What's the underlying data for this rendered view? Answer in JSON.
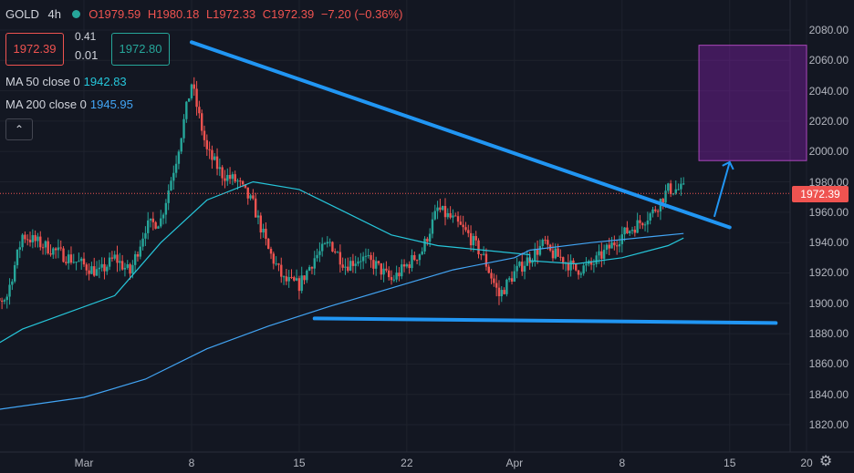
{
  "header": {
    "symbol": "GOLD",
    "timeframe": "4h",
    "open": "O1979.59",
    "high": "H1980.18",
    "low": "L1972.33",
    "close": "C1972.39",
    "change": "−7.20 (−0.36%)"
  },
  "trade": {
    "sell": "1972.39",
    "spread_top": "0.41",
    "spread_bottom": "0.01",
    "buy": "1972.80"
  },
  "indicators": [
    {
      "label": "MA 50 close 0",
      "value": "1942.83",
      "color": "#26c6da"
    },
    {
      "label": "MA 200 close 0",
      "value": "1945.95",
      "color": "#42a5f5"
    }
  ],
  "collapse_icon": "chevron-up-icon",
  "price_axis": [
    "2080.00",
    "2060.00",
    "2040.00",
    "2020.00",
    "2000.00",
    "1980.00",
    "1960.00",
    "1940.00",
    "1920.00",
    "1900.00",
    "1880.00",
    "1860.00",
    "1840.00",
    "1820.00"
  ],
  "last_price": "1972.39",
  "time_axis": [
    "Mar",
    "8",
    "15",
    "22",
    "Apr",
    "8",
    "15",
    "20"
  ],
  "colors": {
    "up": "#26a69a",
    "down": "#ef5350",
    "background": "#131722",
    "trendline": "#2196f3",
    "target_box": "#7b1fa2"
  },
  "settings_icon": "gear-icon",
  "chart_data": {
    "type": "candlestick",
    "title": "GOLD 4h",
    "ylim": [
      1810,
      2095
    ],
    "close_path": [
      {
        "x": "Feb 25",
        "close": 1903
      },
      {
        "x": "Feb 26",
        "close": 1897
      },
      {
        "x": "Feb 27",
        "close": 1905
      },
      {
        "x": "Feb 28",
        "close": 1945
      },
      {
        "x": "Mar 1",
        "close": 1925
      },
      {
        "x": "Mar 2",
        "close": 1920
      },
      {
        "x": "Mar 3",
        "close": 1930
      },
      {
        "x": "Mar 4",
        "close": 1920
      },
      {
        "x": "Mar 5",
        "close": 1950
      },
      {
        "x": "Mar 6",
        "close": 1955
      },
      {
        "x": "Mar 7",
        "close": 1995
      },
      {
        "x": "Mar 8",
        "close": 2045
      },
      {
        "x": "Mar 9",
        "close": 2000
      },
      {
        "x": "Mar 10",
        "close": 1985
      },
      {
        "x": "Mar 11",
        "close": 1980
      },
      {
        "x": "Mar 12",
        "close": 1965
      },
      {
        "x": "Mar 13",
        "close": 1935
      },
      {
        "x": "Mar 14",
        "close": 1915
      },
      {
        "x": "Mar 15",
        "close": 1912
      },
      {
        "x": "Mar 16",
        "close": 1930
      },
      {
        "x": "Mar 17",
        "close": 1940
      },
      {
        "x": "Mar 18",
        "close": 1925
      },
      {
        "x": "Mar 19",
        "close": 1930
      },
      {
        "x": "Mar 20",
        "close": 1925
      },
      {
        "x": "Mar 21",
        "close": 1915
      },
      {
        "x": "Mar 22",
        "close": 1925
      },
      {
        "x": "Mar 23",
        "close": 1935
      },
      {
        "x": "Mar 24",
        "close": 1962
      },
      {
        "x": "Mar 25",
        "close": 1955
      },
      {
        "x": "Mar 26",
        "close": 1945
      },
      {
        "x": "Mar 27",
        "close": 1930
      },
      {
        "x": "Mar 28",
        "close": 1905
      },
      {
        "x": "Mar 29",
        "close": 1920
      },
      {
        "x": "Mar 30",
        "close": 1930
      },
      {
        "x": "Mar 31",
        "close": 1940
      },
      {
        "x": "Apr 1",
        "close": 1935
      },
      {
        "x": "Apr 2",
        "close": 1925
      },
      {
        "x": "Apr 3",
        "close": 1935
      },
      {
        "x": "Apr 4",
        "close": 1930
      },
      {
        "x": "Apr 5",
        "close": 1922
      },
      {
        "x": "Apr 6",
        "close": 1925
      },
      {
        "x": "Apr 7",
        "close": 1935
      },
      {
        "x": "Apr 8",
        "close": 1945
      },
      {
        "x": "Apr 9",
        "close": 1952
      },
      {
        "x": "Apr 10",
        "close": 1960
      },
      {
        "x": "Apr 11",
        "close": 1975
      },
      {
        "x": "Apr 12",
        "close": 1975
      }
    ],
    "ma50": [
      {
        "x": "Feb 25",
        "y": 1865
      },
      {
        "x": "Feb 28",
        "y": 1883
      },
      {
        "x": "Mar 3",
        "y": 1905
      },
      {
        "x": "Mar 6",
        "y": 1940
      },
      {
        "x": "Mar 9",
        "y": 1968
      },
      {
        "x": "Mar 12",
        "y": 1980
      },
      {
        "x": "Mar 15",
        "y": 1975
      },
      {
        "x": "Mar 18",
        "y": 1960
      },
      {
        "x": "Mar 21",
        "y": 1945
      },
      {
        "x": "Mar 24",
        "y": 1938
      },
      {
        "x": "Mar 27",
        "y": 1935
      },
      {
        "x": "Mar 30",
        "y": 1932
      },
      {
        "x": "Apr 2",
        "y": 1928
      },
      {
        "x": "Apr 5",
        "y": 1926
      },
      {
        "x": "Apr 8",
        "y": 1930
      },
      {
        "x": "Apr 11",
        "y": 1938
      },
      {
        "x": "Apr 12",
        "y": 1943
      }
    ],
    "ma200": [
      {
        "x": "Feb 25",
        "y": 1828
      },
      {
        "x": "Mar 1",
        "y": 1838
      },
      {
        "x": "Mar 5",
        "y": 1850
      },
      {
        "x": "Mar 9",
        "y": 1870
      },
      {
        "x": "Mar 13",
        "y": 1885
      },
      {
        "x": "Mar 17",
        "y": 1898
      },
      {
        "x": "Mar 21",
        "y": 1910
      },
      {
        "x": "Mar 25",
        "y": 1922
      },
      {
        "x": "Mar 29",
        "y": 1930
      },
      {
        "x": "Apr 2",
        "y": 1935
      },
      {
        "x": "Apr 6",
        "y": 1940
      },
      {
        "x": "Apr 10",
        "y": 1944
      },
      {
        "x": "Apr 12",
        "y": 1946
      }
    ],
    "drawings": {
      "upper_trendline": [
        {
          "x": "Mar 8",
          "y": 2072
        },
        {
          "x": "Apr 15",
          "y": 1950
        }
      ],
      "lower_trendline": [
        {
          "x": "Mar 16",
          "y": 1890
        },
        {
          "x": "Apr 18",
          "y": 1887
        }
      ],
      "breakout_arrow": [
        {
          "x": "Apr 14",
          "y": 1957
        },
        {
          "x": "Apr 15",
          "y": 1993
        }
      ],
      "target_box": {
        "x_from": "Apr 13",
        "x_to": "Apr 20",
        "y_from": 1994,
        "y_to": 2070
      }
    },
    "last_price": 1972.39
  }
}
